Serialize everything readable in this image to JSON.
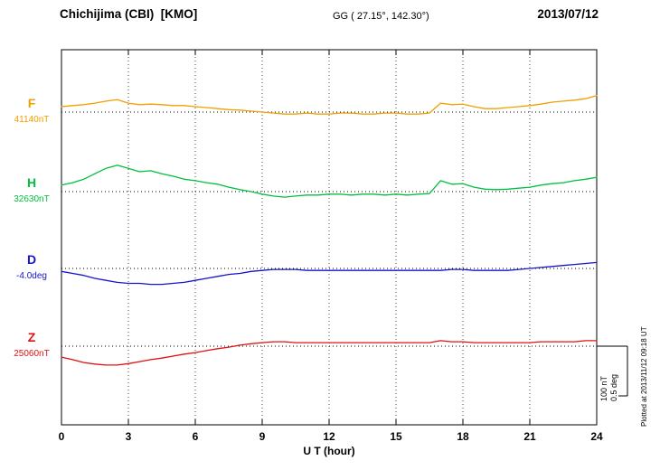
{
  "header": {
    "station": "Chichijima (CBI)  [KMO]",
    "coords": "GG ( 27.15°, 142.30°)",
    "date": "2013/07/12"
  },
  "axis": {
    "x_label": "U T (hour)",
    "x_ticks": [
      "0",
      "3",
      "6",
      "9",
      "12",
      "15",
      "18",
      "21",
      "24"
    ]
  },
  "scale_bar": {
    "nt_label": "100 nT",
    "deg_label": "0.5 deg"
  },
  "footer_note": "Plotted at 2013/11/12 09:18 UT",
  "chart_data": {
    "type": "line",
    "title": "Chichijima (CBI) [KMO] magnetogram 2013/07/12",
    "xlabel": "U T (hour)",
    "x_range": [
      0,
      24
    ],
    "x_step": 0.5,
    "grid": "dotted vertical every 3 h, dotted horizontal baseline per component",
    "scale": {
      "nT_per_div": 100,
      "deg_per_div": 0.5
    },
    "series": [
      {
        "name": "F",
        "unit": "nT",
        "color": "#f0a000",
        "baseline_value": 41140,
        "baseline_label": "41140nT",
        "values": [
          41151,
          41153,
          41155,
          41158,
          41162,
          41165,
          41158,
          41155,
          41156,
          41155,
          41153,
          41153,
          41151,
          41149,
          41147,
          41145,
          41144,
          41142,
          41140,
          41138,
          41136,
          41136,
          41138,
          41136,
          41136,
          41138,
          41138,
          41136,
          41136,
          41138,
          41138,
          41136,
          41136,
          41138,
          41158,
          41155,
          41156,
          41151,
          41147,
          41147,
          41149,
          41151,
          41153,
          41156,
          41160,
          41162,
          41164,
          41167,
          41173
        ]
      },
      {
        "name": "H",
        "unit": "nT",
        "color": "#00c040",
        "baseline_value": 32630,
        "baseline_label": "32630nT",
        "values": [
          32643,
          32648,
          32655,
          32666,
          32677,
          32683,
          32677,
          32670,
          32672,
          32666,
          32661,
          32655,
          32652,
          32648,
          32645,
          32639,
          32634,
          32630,
          32625,
          32621,
          32619,
          32621,
          32623,
          32623,
          32625,
          32625,
          32623,
          32625,
          32625,
          32623,
          32625,
          32623,
          32625,
          32626,
          32652,
          32645,
          32646,
          32639,
          32635,
          32634,
          32635,
          32637,
          32639,
          32643,
          32646,
          32648,
          32652,
          32655,
          32659
        ]
      },
      {
        "name": "D",
        "unit": "deg",
        "color": "#1515cc",
        "baseline_value": -4.0,
        "baseline_label": "-4.0deg",
        "values": [
          -4.03,
          -4.05,
          -4.07,
          -4.1,
          -4.12,
          -4.14,
          -4.15,
          -4.15,
          -4.16,
          -4.16,
          -4.15,
          -4.14,
          -4.12,
          -4.1,
          -4.08,
          -4.06,
          -4.05,
          -4.03,
          -4.02,
          -4.01,
          -4.01,
          -4.01,
          -4.02,
          -4.02,
          -4.02,
          -4.02,
          -4.02,
          -4.02,
          -4.02,
          -4.02,
          -4.02,
          -4.02,
          -4.02,
          -4.02,
          -4.02,
          -4.01,
          -4.01,
          -4.02,
          -4.02,
          -4.02,
          -4.02,
          -4.01,
          -4.0,
          -3.99,
          -3.98,
          -3.97,
          -3.96,
          -3.95,
          -3.94
        ]
      },
      {
        "name": "Z",
        "unit": "nT",
        "color": "#e01010",
        "baseline_value": 25060,
        "baseline_label": "25060nT",
        "values": [
          25038,
          25033,
          25027,
          25024,
          25022,
          25022,
          25025,
          25029,
          25033,
          25036,
          25040,
          25044,
          25047,
          25051,
          25055,
          25058,
          25062,
          25065,
          25067,
          25069,
          25069,
          25067,
          25067,
          25067,
          25067,
          25067,
          25067,
          25067,
          25067,
          25067,
          25067,
          25067,
          25067,
          25067,
          25071,
          25069,
          25069,
          25067,
          25067,
          25067,
          25067,
          25067,
          25067,
          25069,
          25069,
          25069,
          25069,
          25071,
          25071
        ]
      }
    ]
  }
}
